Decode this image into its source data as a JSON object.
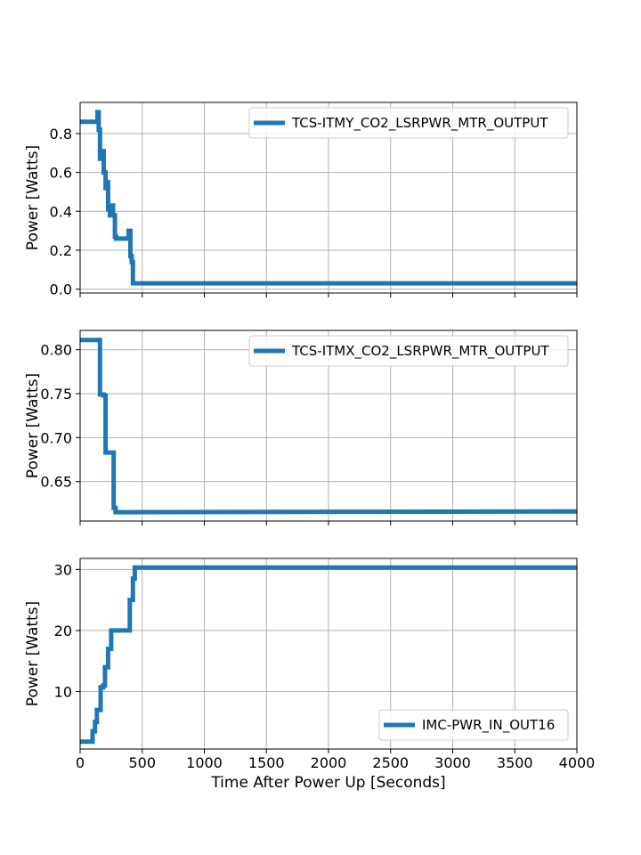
{
  "chart_data": [
    {
      "type": "line",
      "ylabel": "Power [Watts]",
      "xlabel": "",
      "xlim": [
        0,
        4000
      ],
      "ylim": [
        -0.02,
        0.96
      ],
      "xticks": [
        0,
        500,
        1000,
        1500,
        2000,
        2500,
        3000,
        3500,
        4000
      ],
      "xtick_labels_shown": false,
      "yticks": [
        0.0,
        0.2,
        0.4,
        0.6,
        0.8
      ],
      "ytick_labels": [
        "0.0",
        "0.2",
        "0.4",
        "0.6",
        "0.8"
      ],
      "grid": true,
      "legend_position": "upper-right",
      "series": [
        {
          "name": "TCS-ITMY_CO2_LSRPWR_MTR_OUTPUT",
          "color": "#1f77b4",
          "x": [
            0,
            140,
            140,
            150,
            150,
            160,
            160,
            175,
            175,
            190,
            190,
            205,
            205,
            215,
            215,
            225,
            225,
            240,
            240,
            255,
            255,
            265,
            265,
            280,
            280,
            290,
            290,
            390,
            390,
            405,
            405,
            415,
            415,
            425,
            425,
            440,
            440,
            4000
          ],
          "values": [
            0.86,
            0.86,
            0.91,
            0.91,
            0.82,
            0.82,
            0.67,
            0.67,
            0.71,
            0.71,
            0.6,
            0.6,
            0.52,
            0.52,
            0.55,
            0.55,
            0.41,
            0.41,
            0.38,
            0.38,
            0.43,
            0.43,
            0.38,
            0.38,
            0.27,
            0.27,
            0.26,
            0.26,
            0.3,
            0.3,
            0.17,
            0.17,
            0.14,
            0.14,
            0.03,
            0.03,
            0.03,
            0.03
          ]
        }
      ]
    },
    {
      "type": "line",
      "ylabel": "Power [Watts]",
      "xlabel": "",
      "xlim": [
        0,
        4000
      ],
      "ylim": [
        0.605,
        0.822
      ],
      "xticks": [
        0,
        500,
        1000,
        1500,
        2000,
        2500,
        3000,
        3500,
        4000
      ],
      "xtick_labels_shown": false,
      "yticks": [
        0.65,
        0.7,
        0.75,
        0.8
      ],
      "ytick_labels": [
        "0.65",
        "0.70",
        "0.75",
        "0.80"
      ],
      "grid": true,
      "legend_position": "upper-right",
      "series": [
        {
          "name": "TCS-ITMX_CO2_LSRPWR_MTR_OUTPUT",
          "color": "#1f77b4",
          "x": [
            0,
            160,
            160,
            190,
            190,
            205,
            205,
            235,
            235,
            270,
            270,
            285,
            285,
            4000
          ],
          "values": [
            0.811,
            0.811,
            0.749,
            0.749,
            0.748,
            0.748,
            0.683,
            0.683,
            0.683,
            0.683,
            0.62,
            0.62,
            0.615,
            0.616
          ]
        }
      ]
    },
    {
      "type": "line",
      "ylabel": "Power [Watts]",
      "xlabel": "Time After Power Up [Seconds]",
      "xlim": [
        0,
        4000
      ],
      "ylim": [
        0.6,
        31.8
      ],
      "xticks": [
        0,
        500,
        1000,
        1500,
        2000,
        2500,
        3000,
        3500,
        4000
      ],
      "xtick_labels_shown": true,
      "xtick_labels": [
        "0",
        "500",
        "1000",
        "1500",
        "2000",
        "2500",
        "3000",
        "3500",
        "4000"
      ],
      "yticks": [
        10,
        20,
        30
      ],
      "ytick_labels": [
        "10",
        "20",
        "30"
      ],
      "grid": true,
      "legend_position": "lower-right",
      "series": [
        {
          "name": "IMC-PWR_IN_OUT16",
          "color": "#1f77b4",
          "x": [
            0,
            100,
            100,
            120,
            120,
            135,
            135,
            165,
            165,
            185,
            185,
            200,
            200,
            225,
            225,
            250,
            250,
            280,
            280,
            400,
            400,
            425,
            425,
            440,
            440,
            4000
          ],
          "values": [
            1.8,
            1.8,
            3.5,
            3.5,
            5.0,
            5.0,
            7.0,
            7.0,
            10.7,
            10.7,
            11.0,
            11.0,
            14.0,
            14.0,
            17.0,
            17.0,
            20.0,
            20.0,
            20.0,
            20.0,
            25.0,
            25.0,
            28.5,
            28.5,
            30.3,
            30.3
          ]
        }
      ]
    }
  ]
}
